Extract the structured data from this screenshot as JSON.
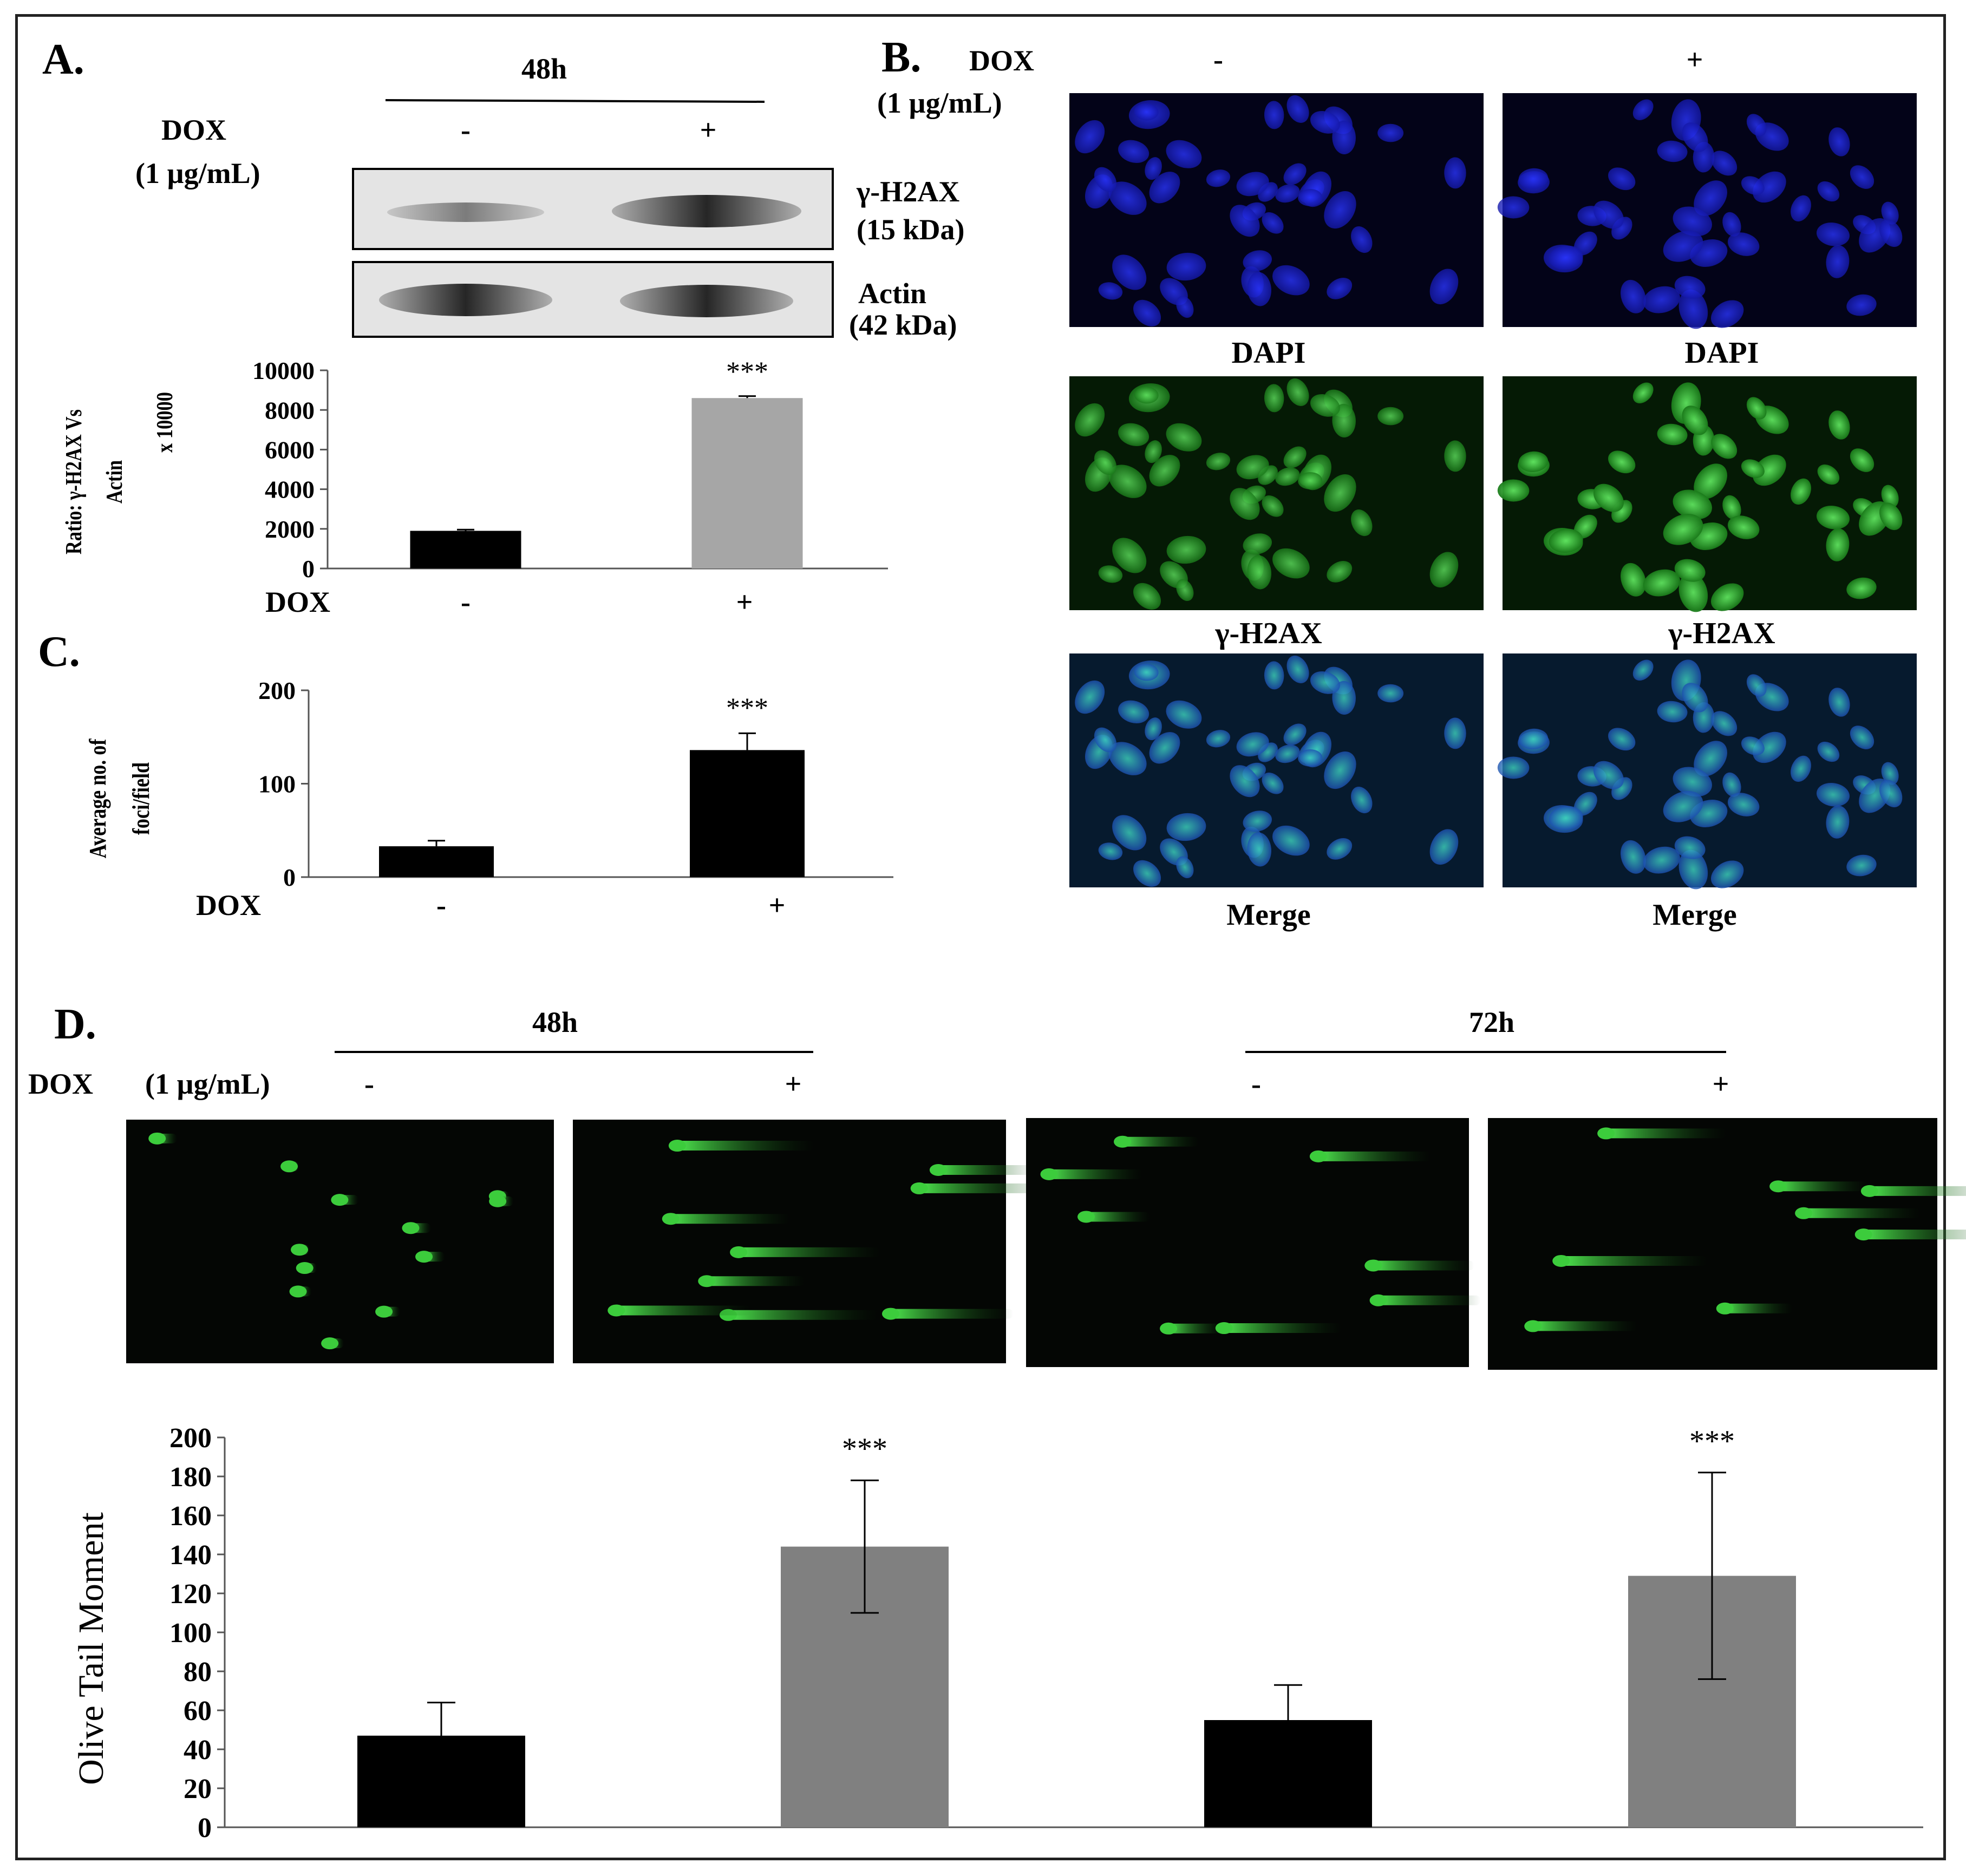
{
  "panelA": {
    "label": "A.",
    "timepoint": "48h",
    "dox_label": "DOX",
    "dox_conc": "(1 µg/mL)",
    "minus": "-",
    "plus": "+",
    "blot_gh2ax_name": "γ-H2AX",
    "blot_gh2ax_kda": "(15 kDa)",
    "blot_actin_name": "Actin",
    "blot_actin_kda": "(42 kDa)"
  },
  "panelB": {
    "label": "B.",
    "dox_label": "DOX",
    "dox_conc": "(1 µg/mL)",
    "minus": "-",
    "plus": "+",
    "row_labels": [
      "DAPI",
      "γ-H2AX",
      "Merge"
    ],
    "channel_colors": {
      "dapi": "#1a1fd6",
      "gh2ax": "#33c233",
      "merge": "#2aa7a0"
    }
  },
  "panelD": {
    "label": "D.",
    "timepoints": [
      "48h",
      "72h"
    ],
    "dox_label": "DOX",
    "dox_conc": "(1 µg/mL)",
    "minus": "-",
    "plus": "+",
    "comet_color": "#3ccc3c"
  },
  "chart_data": [
    {
      "id": "A",
      "type": "bar",
      "categories": [
        "-",
        "+"
      ],
      "xlabel": "DOX",
      "ylabel_lines": [
        "Ratio: γ-H2AX Vs",
        "Actin",
        "x 10000"
      ],
      "ylim": [
        0,
        10000
      ],
      "yticks": [
        0,
        2000,
        4000,
        6000,
        8000,
        10000
      ],
      "values": [
        1900,
        8600
      ],
      "errors": [
        60,
        100
      ],
      "colors": [
        "#000000",
        "#a6a6a6"
      ],
      "annotations": [
        "",
        "***"
      ],
      "grid": false
    },
    {
      "id": "C",
      "type": "bar",
      "label": "C.",
      "categories": [
        "-",
        "+"
      ],
      "xlabel": "DOX",
      "ylabel_lines": [
        "Average no. of",
        "foci/field"
      ],
      "ylim": [
        0,
        200
      ],
      "yticks": [
        0,
        100,
        200
      ],
      "values": [
        33,
        136
      ],
      "errors": [
        6,
        18
      ],
      "colors": [
        "#000000",
        "#000000"
      ],
      "annotations": [
        "",
        "***"
      ],
      "grid": false
    },
    {
      "id": "D",
      "type": "bar",
      "categories": [
        "48h -",
        "48h +",
        "72h -",
        "72h +"
      ],
      "ylabel": "Olive Tail Moment",
      "ylim": [
        0,
        200
      ],
      "yticks": [
        0,
        20,
        40,
        60,
        80,
        100,
        120,
        140,
        160,
        180,
        200
      ],
      "values": [
        47,
        144,
        55,
        129
      ],
      "errors": [
        17,
        34,
        18,
        53
      ],
      "colors": [
        "#000000",
        "#808080",
        "#000000",
        "#808080"
      ],
      "annotations": [
        "",
        "***",
        "",
        "***"
      ],
      "grid": false
    }
  ]
}
